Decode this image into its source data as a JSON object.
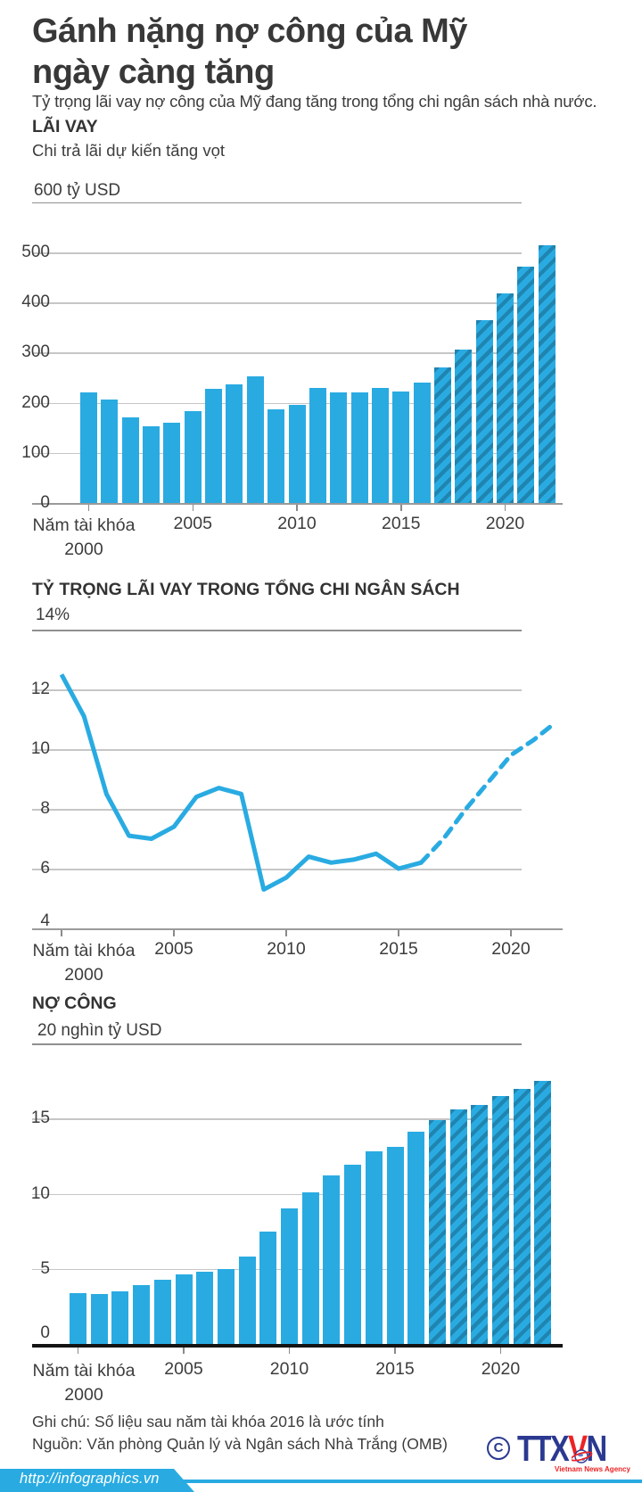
{
  "header": {
    "title_line1": "Gánh nặng nợ công của Mỹ",
    "title_line2": "ngày càng tăng",
    "subtitle": "Tỷ trọng lãi vay nợ công của Mỹ đang tăng trong tổng chi ngân sách nhà nước."
  },
  "colors": {
    "bar": "#29abe2",
    "hatch_stripe": "#1f85b0",
    "line": "#29abe2",
    "grid": "#c6c6c6",
    "grid_dark": "#8f8f8f",
    "black_axis": "#141414",
    "logo_blue": "#2b3990",
    "logo_red": "#ed2224",
    "footer_blue": "#29abe2"
  },
  "chart_data": [
    {
      "id": "interest",
      "type": "bar",
      "section_title": "LÃI VAY",
      "section_subtitle": "Chi trả lãi dự kiến tăng vọt",
      "unit_label": "600 tỷ USD",
      "ylabel": "tỷ USD",
      "ylim": [
        0,
        600
      ],
      "ytick_values": [
        0,
        100,
        200,
        300,
        400,
        500
      ],
      "x": [
        2000,
        2001,
        2002,
        2003,
        2004,
        2005,
        2006,
        2007,
        2008,
        2009,
        2010,
        2011,
        2012,
        2013,
        2014,
        2015,
        2016,
        2017,
        2018,
        2019,
        2020,
        2021,
        2022
      ],
      "values": [
        220,
        206,
        171,
        153,
        160,
        184,
        227,
        237,
        253,
        187,
        196,
        230,
        220,
        221,
        229,
        223,
        240,
        270,
        307,
        365,
        418,
        472,
        515
      ],
      "estimate_start_index": 17,
      "axis_caption": "Năm tài khóa",
      "tick_years": [
        2000,
        2005,
        2010,
        2015,
        2020
      ],
      "grid": true,
      "legend": "none"
    },
    {
      "id": "interest-share",
      "type": "line",
      "section_title": "TỶ TRỌNG LÃI VAY TRONG TỔNG CHI NGÂN SÁCH",
      "unit_label": "14%",
      "ylabel": "%",
      "ylim": [
        4,
        14
      ],
      "ytick_values": [
        4,
        6,
        8,
        10,
        12
      ],
      "x": [
        2000,
        2001,
        2002,
        2003,
        2004,
        2005,
        2006,
        2007,
        2008,
        2009,
        2010,
        2011,
        2012,
        2013,
        2014,
        2015,
        2016,
        2017,
        2018,
        2019,
        2020,
        2021,
        2022
      ],
      "values": [
        12.5,
        11.1,
        8.5,
        7.1,
        7.0,
        7.4,
        8.4,
        8.7,
        8.5,
        5.3,
        5.7,
        6.4,
        6.2,
        6.3,
        6.5,
        6.0,
        6.2,
        7.0,
        8.0,
        8.9,
        9.8,
        10.3,
        10.9
      ],
      "dashed_from_index": 16,
      "axis_caption": "Năm tài khóa",
      "tick_years": [
        2000,
        2005,
        2010,
        2015,
        2020
      ],
      "grid": true,
      "legend": "none"
    },
    {
      "id": "public-debt",
      "type": "bar",
      "section_title": "NỢ CÔNG",
      "section_subtitle": "",
      "unit_label": "20 nghìn tỷ USD",
      "ylabel": "nghìn tỷ USD",
      "ylim": [
        0,
        20
      ],
      "ytick_values": [
        0,
        5,
        10,
        15
      ],
      "x": [
        2000,
        2001,
        2002,
        2003,
        2004,
        2005,
        2006,
        2007,
        2008,
        2009,
        2010,
        2011,
        2012,
        2013,
        2014,
        2015,
        2016,
        2017,
        2018,
        2019,
        2020,
        2021,
        2022
      ],
      "values": [
        3.4,
        3.3,
        3.5,
        3.9,
        4.3,
        4.6,
        4.8,
        5.0,
        5.8,
        7.5,
        9.0,
        10.1,
        11.2,
        11.9,
        12.8,
        13.1,
        14.1,
        14.9,
        15.6,
        15.9,
        16.5,
        17.0,
        17.5
      ],
      "estimate_start_index": 17,
      "axis_caption": "Năm tài khóa",
      "tick_years": [
        2000,
        2005,
        2010,
        2015,
        2020
      ],
      "grid": true,
      "legend": "none"
    }
  ],
  "notes": {
    "note": "Ghi chú: Số liệu sau năm tài khóa 2016 là ước tính",
    "source": "Nguồn: Văn phòng Quản lý và Ngân sách Nhà Trắng (OMB)"
  },
  "logo": {
    "copyright": "C",
    "part1": "TTX",
    "part2": "V",
    "part3": "N",
    "tagline": "Vietnam News Agency"
  },
  "footer": {
    "url": "http://infographics.vn"
  }
}
